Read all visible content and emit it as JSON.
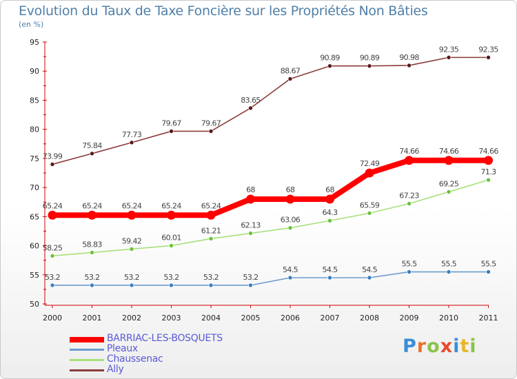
{
  "title": "Evolution du Taux de Taxe Foncière sur les Propriétés Non Bâties",
  "unit_label": "(en %)",
  "logo": {
    "letters": [
      "P",
      "r",
      "o",
      "x",
      "i",
      "t",
      "i"
    ],
    "colors": [
      "#3a8fd6",
      "#e8742a",
      "#8bc34a",
      "#e84a2a",
      "#3a8fd6",
      "#e8b82a",
      "#8bc34a"
    ]
  },
  "chart_data": {
    "type": "line",
    "title": "Evolution du Taux de Taxe Foncière sur les Propriétés Non Bâties",
    "ylabel": "(en %)",
    "xlabel": "",
    "categories": [
      "2000",
      "2001",
      "2002",
      "2003",
      "2004",
      "2005",
      "2006",
      "2007",
      "2008",
      "2009",
      "2010",
      "2011"
    ],
    "ylim": [
      50,
      95
    ],
    "yticks": [
      "50",
      "55",
      "60",
      "65",
      "70",
      "75",
      "80",
      "85",
      "90",
      "95"
    ],
    "series": [
      {
        "name": "Ally",
        "color": "#8b3a3a",
        "dot": "#5a1a1a",
        "width": "thin",
        "values": [
          73.99,
          75.84,
          77.73,
          79.67,
          79.67,
          83.65,
          88.67,
          90.89,
          90.89,
          90.98,
          92.35,
          92.35
        ],
        "labels": [
          "73.99",
          "75.84",
          "77.73",
          "79.67",
          "79.67",
          "83.65",
          "88.67",
          "90.89",
          "90.89",
          "90.98",
          "92.35",
          "92.35"
        ]
      },
      {
        "name": "BARRIAC-LES-BOSQUETS",
        "color": "#ff0000",
        "dot": "#ff0000",
        "width": "thick",
        "values": [
          65.24,
          65.24,
          65.24,
          65.24,
          65.24,
          68,
          68,
          68,
          72.49,
          74.66,
          74.66,
          74.66
        ],
        "labels": [
          "65.24",
          "65.24",
          "65.24",
          "65.24",
          "65.24",
          "68",
          "68",
          "68",
          "72.49",
          "74.66",
          "74.66",
          "74.66"
        ]
      },
      {
        "name": "Chaussenac",
        "color": "#a8e07a",
        "dot": "#6cc23a",
        "width": "thin",
        "values": [
          58.25,
          58.83,
          59.42,
          60.01,
          61.21,
          62.13,
          63.06,
          64.3,
          65.59,
          67.23,
          69.25,
          71.3
        ],
        "labels": [
          "58.25",
          "58.83",
          "59.42",
          "60.01",
          "61.21",
          "62.13",
          "63.06",
          "64.3",
          "65.59",
          "67.23",
          "69.25",
          "71.3"
        ]
      },
      {
        "name": "Pleaux",
        "color": "#6a9ccc",
        "dot": "#3a7fc0",
        "width": "thin",
        "values": [
          53.2,
          53.2,
          53.2,
          53.2,
          53.2,
          53.2,
          54.5,
          54.5,
          54.5,
          55.5,
          55.5,
          55.5
        ],
        "labels": [
          "53.2",
          "53.2",
          "53.2",
          "53.2",
          "53.2",
          "53.2",
          "54.5",
          "54.5",
          "54.5",
          "55.5",
          "55.5",
          "55.5"
        ]
      }
    ],
    "legend": [
      {
        "name": "BARRIAC-LES-BOSQUETS",
        "color": "#ff0000",
        "width": "thick"
      },
      {
        "name": "Pleaux",
        "color": "#6a9ccc",
        "width": "thin"
      },
      {
        "name": "Chaussenac",
        "color": "#a8e07a",
        "width": "thin"
      },
      {
        "name": "Ally",
        "color": "#8b3a3a",
        "width": "thin"
      }
    ],
    "grid": false,
    "legend_position": "bottom-left"
  }
}
